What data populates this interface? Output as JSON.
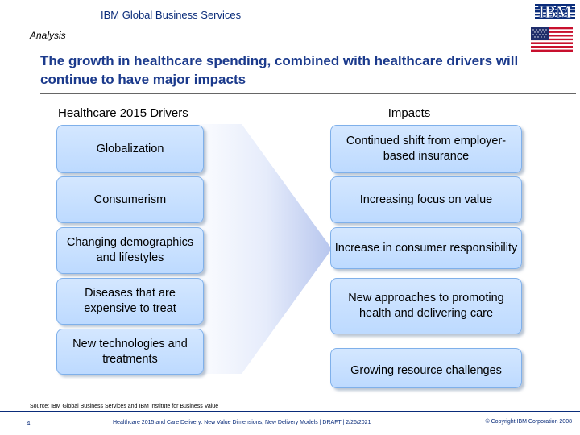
{
  "header": {
    "title": "IBM Global Business Services",
    "logo_text": "IBM",
    "section_label": "Analysis"
  },
  "slide": {
    "title": "The growth in healthcare spending, combined with healthcare drivers will continue to have major impacts",
    "left_heading": "Healthcare 2015 Drivers",
    "right_heading": "Impacts",
    "drivers": [
      "Globalization",
      "Consumerism",
      "Changing demographics and lifestyles",
      "Diseases that are expensive to treat",
      "New technologies and treatments"
    ],
    "impacts": [
      "Continued shift from employer-based insurance",
      "Increasing focus on value",
      "Increase in consumer responsibility",
      "New approaches to promoting health and delivering care",
      "Growing resource challenges"
    ]
  },
  "footer": {
    "source": "Source: IBM Global Business Services and IBM Institute for Business Value",
    "page_number": "4",
    "meta": "Healthcare 2015 and Care Delivery: New Value Dimensions, New Delivery Models | DRAFT | 2/26/2021",
    "copyright": "© Copyright IBM Corporation 2008"
  },
  "colors": {
    "brand_blue": "#0a2c7a",
    "title_blue": "#1b3a8c",
    "box_fill": "#c6e0ff",
    "box_border": "#7fb0ea"
  }
}
